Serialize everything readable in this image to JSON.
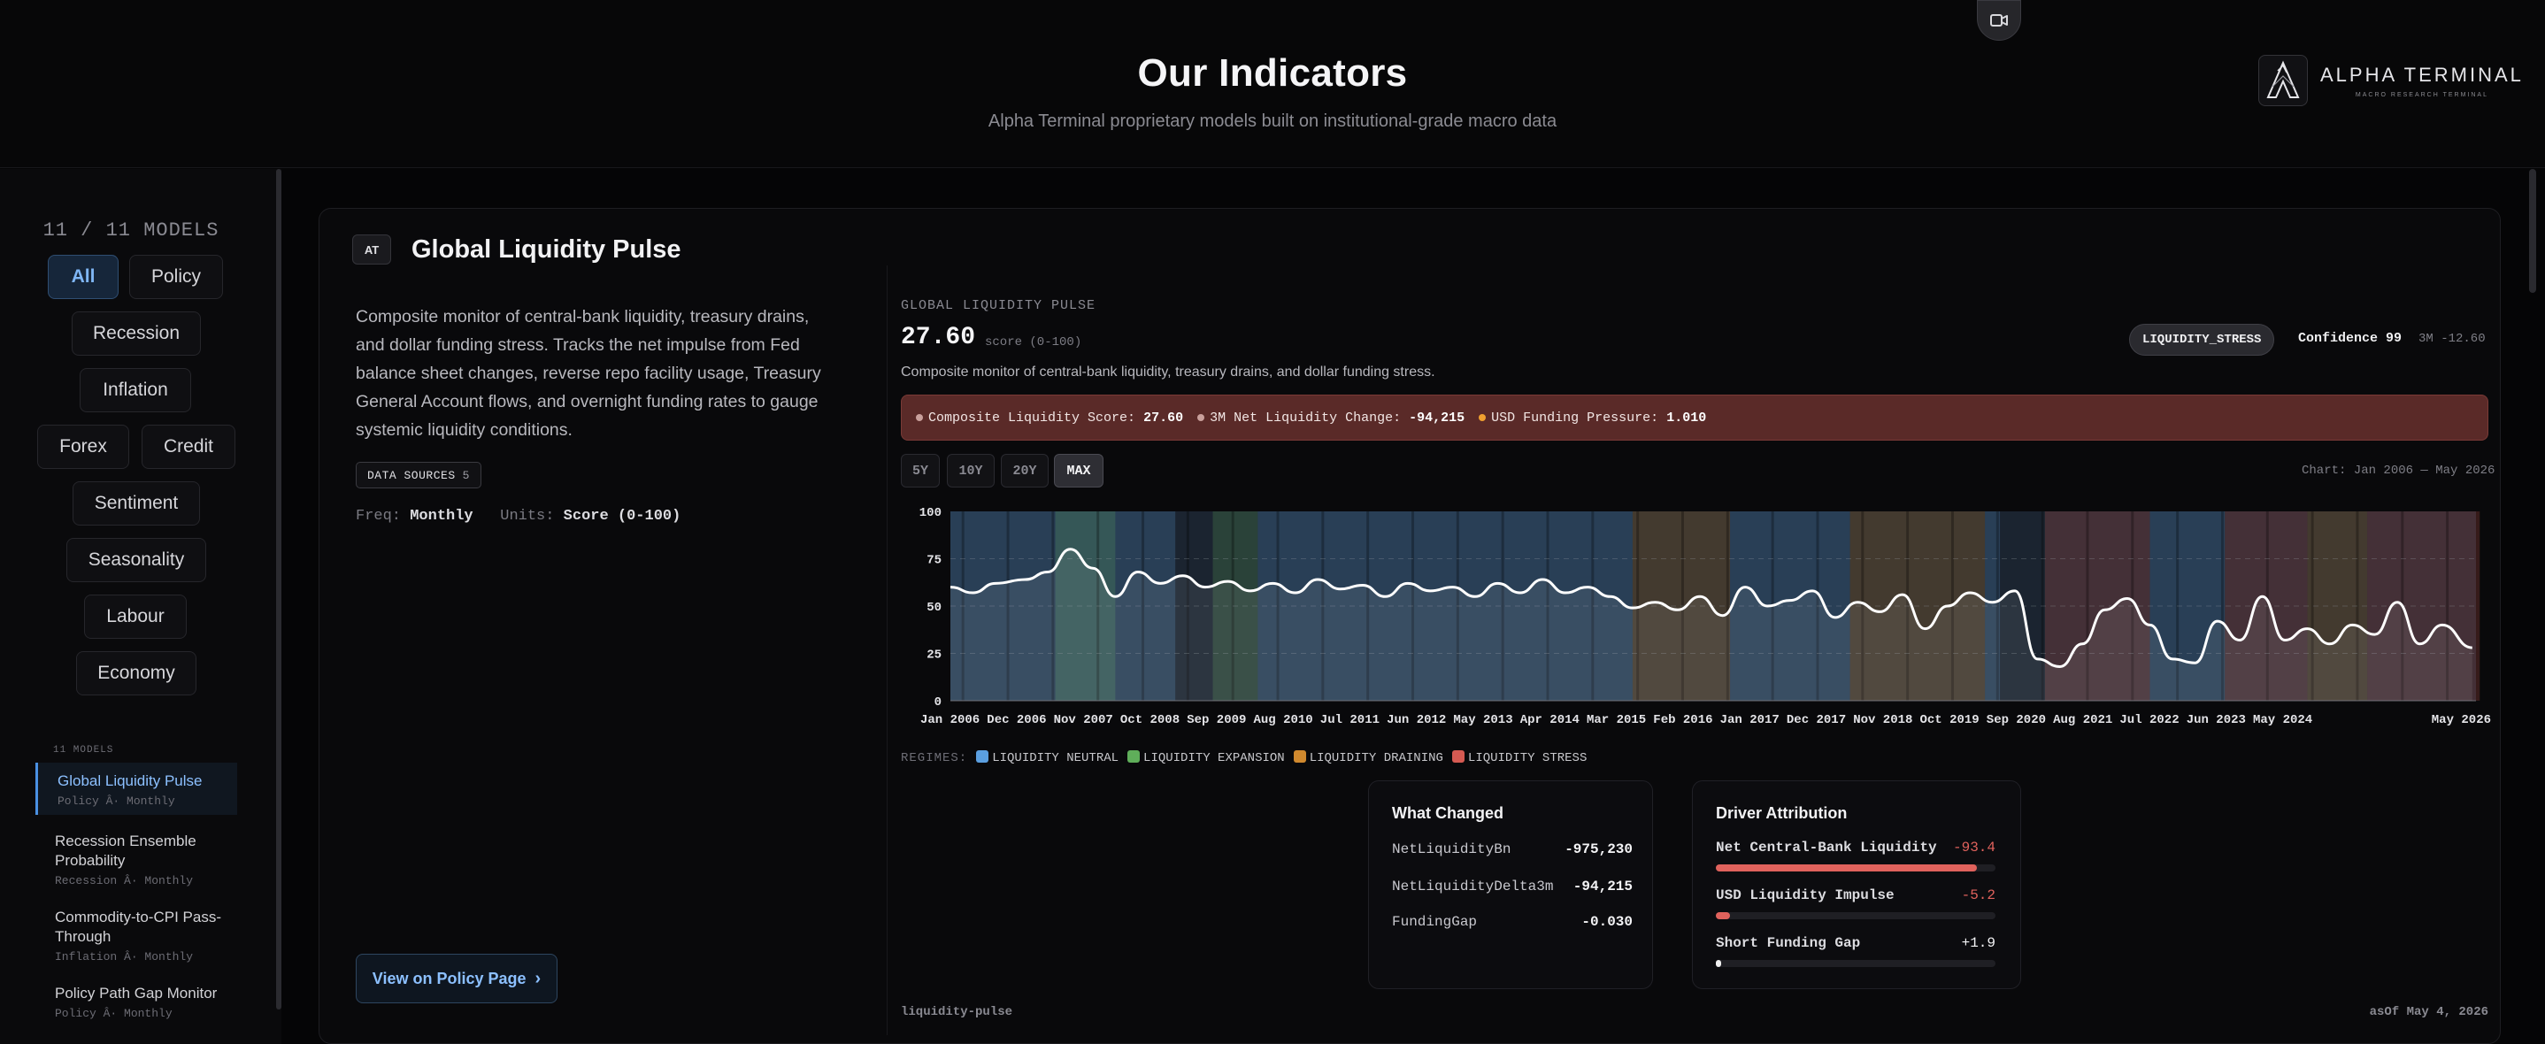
{
  "header": {
    "title": "Our Indicators",
    "subtitle": "Alpha Terminal proprietary models built on institutional-grade macro data",
    "brand_name": "ALPHA TERMINAL",
    "brand_tagline": "MACRO RESEARCH TERMINAL",
    "camera_icon": "video-camera-icon"
  },
  "sidebar": {
    "model_count": "11 / 11 MODELS",
    "filters": [
      "All",
      "Policy",
      "Recession",
      "Inflation",
      "Forex",
      "Credit",
      "Sentiment",
      "Seasonality",
      "Labour",
      "Economy"
    ],
    "active_filter": "All",
    "models_label": "11 MODELS",
    "models": [
      {
        "name": "Global Liquidity Pulse",
        "meta": "Policy Â· Monthly",
        "active": true
      },
      {
        "name": "Recession Ensemble Probability",
        "meta": "Recession Â· Monthly"
      },
      {
        "name": "Commodity-to-CPI Pass-Through",
        "meta": "Inflation Â· Monthly"
      },
      {
        "name": "Policy Path Gap Monitor",
        "meta": "Policy Â· Monthly"
      }
    ]
  },
  "card": {
    "badge": "AT",
    "title": "Global Liquidity Pulse",
    "description": "Composite monitor of central-bank liquidity, treasury drains, and dollar funding stress. Tracks the net impulse from Fed balance sheet changes, reverse repo facility usage, Treasury General Account flows, and overnight funding rates to gauge systemic liquidity conditions.",
    "data_sources_label": "DATA SOURCES",
    "data_sources_count": "5",
    "freq_label": "Freq:",
    "freq_value": "Monthly",
    "units_label": "Units:",
    "units_value": "Score (0-100)",
    "policy_button": "View on Policy Page",
    "policy_button_icon": "chevron-right-icon"
  },
  "panel": {
    "label": "GLOBAL LIQUIDITY PULSE",
    "score": "27.60",
    "score_unit": "score (0-100)",
    "description": "Composite monitor of central-bank liquidity, treasury drains, and dollar funding stress.",
    "regime": "LIQUIDITY_STRESS",
    "confidence": "Confidence 99",
    "delta_3m": "3M -12.60",
    "stress_items": [
      {
        "label": "Composite Liquidity Score:",
        "value": "27.60",
        "color": "#c9a09c"
      },
      {
        "label": "3M Net Liquidity Change:",
        "value": "-94,215",
        "color": "#c9a09c"
      },
      {
        "label": "USD Funding Pressure:",
        "value": "1.010",
        "color": "#f0a030"
      }
    ],
    "ranges": [
      "5Y",
      "10Y",
      "20Y",
      "MAX"
    ],
    "active_range": "MAX",
    "chart_range_text": "Chart: Jan 2006 — May 2026",
    "regimes_label": "REGIMES:",
    "regime_legend": [
      {
        "name": "LIQUIDITY NEUTRAL",
        "color": "#5b9fe0"
      },
      {
        "name": "LIQUIDITY EXPANSION",
        "color": "#5fae5a"
      },
      {
        "name": "LIQUIDITY DRAINING",
        "color": "#d0892e"
      },
      {
        "name": "LIQUIDITY STRESS",
        "color": "#d65a52"
      }
    ],
    "what_changed": {
      "title": "What Changed",
      "rows": [
        {
          "key": "NetLiquidityBn",
          "value": "-975,230"
        },
        {
          "key": "NetLiquidityDelta3m",
          "value": "-94,215"
        },
        {
          "key": "FundingGap",
          "value": "-0.030"
        }
      ]
    },
    "driver_attribution": {
      "title": "Driver Attribution",
      "rows": [
        {
          "key": "Net Central-Bank Liquidity",
          "value": "-93.4",
          "share": 0.934,
          "color": "#e0625c"
        },
        {
          "key": "USD Liquidity Impulse",
          "value": "-5.2",
          "share": 0.052,
          "color": "#e0625c"
        },
        {
          "key": "Short Funding Gap",
          "value": "+1.9",
          "share": 0.019,
          "color": "#f0f0f0"
        }
      ]
    },
    "footer_id": "liquidity-pulse",
    "footer_asof": "asOf May 4, 2026"
  },
  "chart_data": {
    "type": "line",
    "ylim": [
      0,
      100
    ],
    "yticks": [
      "0",
      "25",
      "50",
      "75",
      "100"
    ],
    "xlim": [
      "2006-01",
      "2026-05"
    ],
    "xtick_labels": [
      "Jan 2006",
      "Dec 2006",
      "Nov 2007",
      "Oct 2008",
      "Sep 2009",
      "Aug 2010",
      "Jul 2011",
      "Jun 2012",
      "May 2013",
      "Apr 2014",
      "Mar 2015",
      "Feb 2016",
      "Jan 2017",
      "Dec 2017",
      "Nov 2018",
      "Oct 2019",
      "Sep 2020",
      "Aug 2021",
      "Jul 2022",
      "Jun 2023",
      "May 2024",
      "May 2026"
    ],
    "series": [
      {
        "values_x_year": [
          2006.0,
          2006.3,
          2006.6,
          2007.0,
          2007.3,
          2007.6,
          2007.9,
          2008.2,
          2008.5,
          2008.8,
          2009.1,
          2009.4,
          2009.7,
          2010.0,
          2010.3,
          2010.6,
          2010.9,
          2011.2,
          2011.5,
          2011.8,
          2012.1,
          2012.4,
          2012.7,
          2013.0,
          2013.3,
          2013.6,
          2013.9,
          2014.2,
          2014.5,
          2014.8,
          2015.1,
          2015.4,
          2015.7,
          2016.0,
          2016.3,
          2016.6,
          2016.9,
          2017.2,
          2017.5,
          2017.8,
          2018.1,
          2018.4,
          2018.7,
          2019.0,
          2019.3,
          2019.6,
          2019.9,
          2020.2,
          2020.5,
          2020.8,
          2021.1,
          2021.4,
          2021.7,
          2022.0,
          2022.3,
          2022.6,
          2022.9,
          2023.2,
          2023.5,
          2023.8,
          2024.1,
          2024.4,
          2024.7,
          2025.0,
          2025.3,
          2025.6,
          2025.9,
          2026.3
        ],
        "values": [
          60,
          57,
          62,
          64,
          68,
          80,
          70,
          55,
          68,
          62,
          66,
          60,
          63,
          58,
          62,
          57,
          64,
          59,
          61,
          55,
          62,
          58,
          60,
          55,
          62,
          57,
          64,
          57,
          60,
          55,
          49,
          52,
          48,
          55,
          45,
          60,
          50,
          53,
          58,
          44,
          52,
          47,
          56,
          38,
          50,
          57,
          52,
          58,
          22,
          18,
          30,
          48,
          54,
          40,
          22,
          20,
          42,
          32,
          55,
          32,
          38,
          30,
          40,
          35,
          52,
          30,
          40,
          28
        ]
      }
    ],
    "regime_bands": [
      {
        "from": 2006.0,
        "to": 2009.0,
        "regime": "LIQUIDITY NEUTRAL"
      },
      {
        "from": 2007.4,
        "to": 2008.2,
        "regime": "LIQUIDITY EXPANSION"
      },
      {
        "from": 2009.5,
        "to": 2010.1,
        "regime": "LIQUIDITY EXPANSION"
      },
      {
        "from": 2010.1,
        "to": 2015.1,
        "regime": "LIQUIDITY NEUTRAL"
      },
      {
        "from": 2015.1,
        "to": 2016.4,
        "regime": "LIQUIDITY DRAINING"
      },
      {
        "from": 2016.4,
        "to": 2018.0,
        "regime": "LIQUIDITY NEUTRAL"
      },
      {
        "from": 2018.0,
        "to": 2019.8,
        "regime": "LIQUIDITY DRAINING"
      },
      {
        "from": 2019.8,
        "to": 2020.0,
        "regime": "LIQUIDITY NEUTRAL"
      },
      {
        "from": 2020.6,
        "to": 2022.0,
        "regime": "LIQUIDITY STRESS"
      },
      {
        "from": 2022.0,
        "to": 2023.0,
        "regime": "LIQUIDITY NEUTRAL"
      },
      {
        "from": 2023.0,
        "to": 2024.1,
        "regime": "LIQUIDITY STRESS"
      },
      {
        "from": 2024.1,
        "to": 2024.9,
        "regime": "LIQUIDITY DRAINING"
      },
      {
        "from": 2024.9,
        "to": 2026.4,
        "regime": "LIQUIDITY STRESS"
      }
    ],
    "grid": true
  }
}
